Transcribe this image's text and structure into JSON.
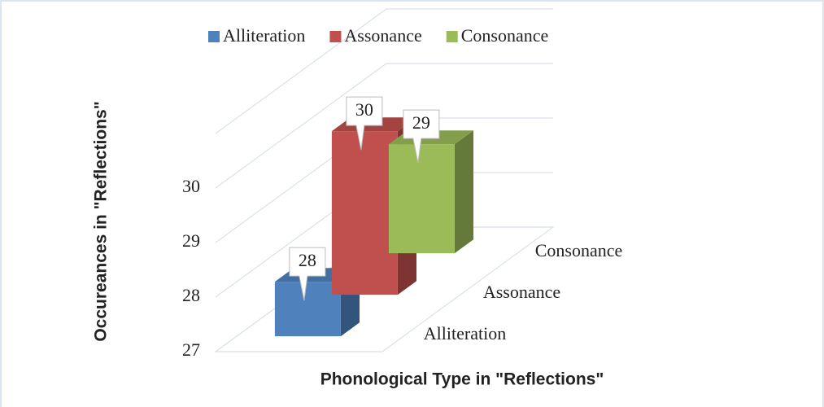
{
  "chart_data": {
    "type": "bar3d",
    "categories": [
      "Alliteration",
      "Assonance",
      "Consonance"
    ],
    "values": [
      28,
      30,
      29
    ],
    "colors": [
      "#4f81bd",
      "#c0504d",
      "#9bbb59"
    ],
    "ylim": [
      27,
      31
    ],
    "yticks": [
      27,
      28,
      29,
      30
    ],
    "grid": true,
    "x_label": "Phonological Type in \"Reflections\"",
    "y_label": "Occureances in \"Reflections\"",
    "legend": "top"
  }
}
